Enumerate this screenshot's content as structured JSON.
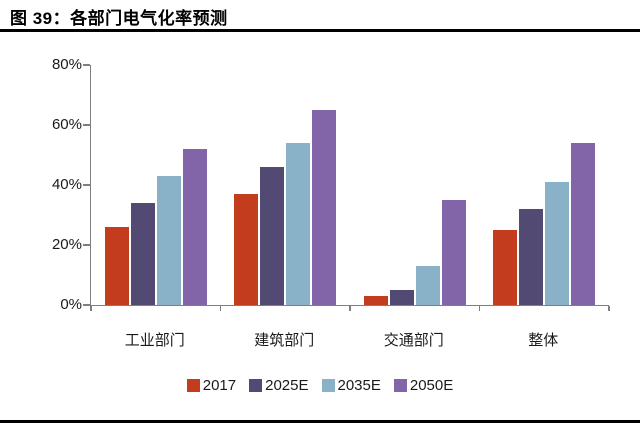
{
  "header": {
    "title": "图 39：各部门电气化率预测"
  },
  "colors": {
    "rule": "#000000",
    "axis": "#7f7f7f",
    "series_2017": "#c43c1e",
    "series_2025e": "#524a73",
    "series_2035e": "#89b1c7",
    "series_2050e": "#8165a8"
  },
  "chart_data": {
    "type": "bar",
    "title": "各部门电气化率预测",
    "categories": [
      "工业部门",
      "建筑部门",
      "交通部门",
      "整体"
    ],
    "series": [
      {
        "name": "2017",
        "color": "#c43c1e",
        "values": [
          26,
          37,
          3,
          25
        ]
      },
      {
        "name": "2025E",
        "color": "#524a73",
        "values": [
          34,
          46,
          5,
          32
        ]
      },
      {
        "name": "2035E",
        "color": "#89b1c7",
        "values": [
          43,
          54,
          13,
          41
        ]
      },
      {
        "name": "2050E",
        "color": "#8165a8",
        "values": [
          52,
          65,
          35,
          54
        ]
      }
    ],
    "xlabel": "",
    "ylabel": "",
    "ylim": [
      0,
      80
    ],
    "yticks": [
      "0%",
      "20%",
      "40%",
      "60%",
      "80%"
    ],
    "grid": false,
    "legend_position": "bottom"
  }
}
